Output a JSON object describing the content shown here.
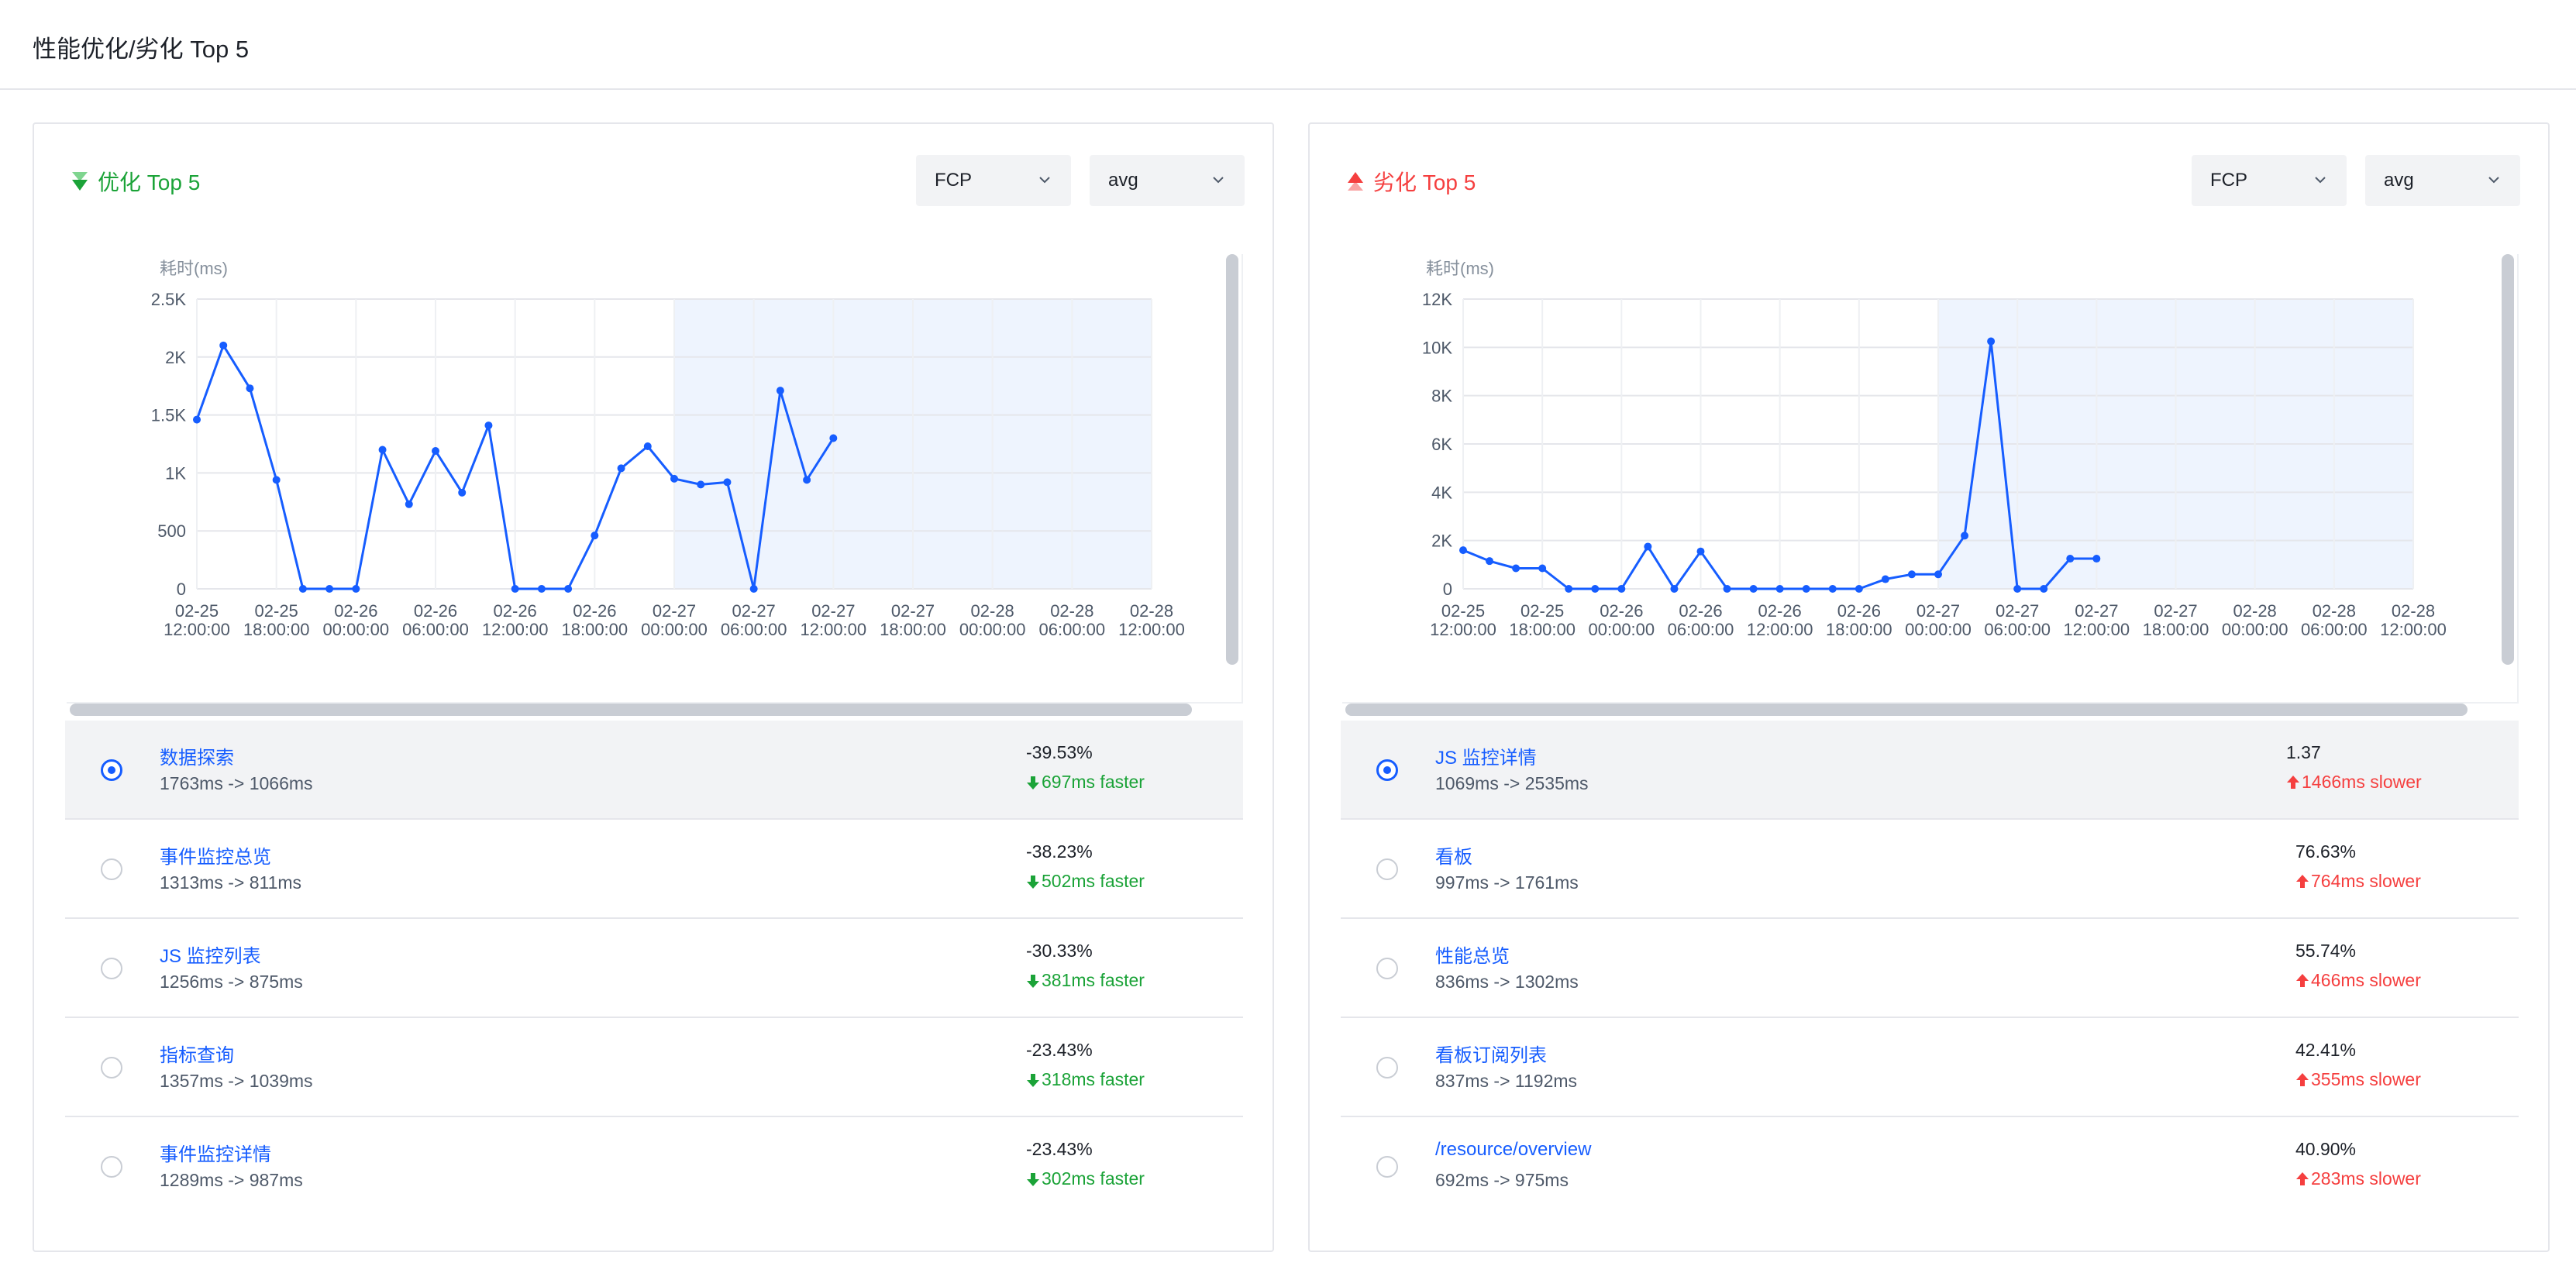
{
  "page": {
    "title": "性能优化/劣化 Top 5"
  },
  "colors": {
    "accent": "#165dff",
    "improve": "#1ba338",
    "degrade": "#f53f3f",
    "band": "#eef4fe"
  },
  "panels": [
    {
      "id": "improve",
      "title": "优化 Top 5",
      "icon": "double-arrow-down-icon",
      "metric_select": "FCP",
      "stat_select": "avg",
      "items": [
        {
          "name": "数据探索",
          "range": "1763ms -> 1066ms",
          "pct": "-39.53%",
          "delta": "697ms faster",
          "selected": true
        },
        {
          "name": "事件监控总览",
          "range": "1313ms -> 811ms",
          "pct": "-38.23%",
          "delta": "502ms faster",
          "selected": false
        },
        {
          "name": "JS 监控列表",
          "range": "1256ms -> 875ms",
          "pct": "-30.33%",
          "delta": "381ms faster",
          "selected": false
        },
        {
          "name": "指标查询",
          "range": "1357ms -> 1039ms",
          "pct": "-23.43%",
          "delta": "318ms faster",
          "selected": false
        },
        {
          "name": "事件监控详情",
          "range": "1289ms -> 987ms",
          "pct": "-23.43%",
          "delta": "302ms faster",
          "selected": false
        }
      ]
    },
    {
      "id": "degrade",
      "title": "劣化 Top 5",
      "icon": "double-arrow-up-icon",
      "metric_select": "FCP",
      "stat_select": "avg",
      "items": [
        {
          "name": "JS 监控详情",
          "range": "1069ms -> 2535ms",
          "pct": "1.37",
          "delta": "1466ms slower",
          "selected": true
        },
        {
          "name": "看板",
          "range": "997ms -> 1761ms",
          "pct": "76.63%",
          "delta": "764ms slower",
          "selected": false
        },
        {
          "name": "性能总览",
          "range": "836ms -> 1302ms",
          "pct": "55.74%",
          "delta": "466ms slower",
          "selected": false
        },
        {
          "name": "看板订阅列表",
          "range": "837ms -> 1192ms",
          "pct": "42.41%",
          "delta": "355ms slower",
          "selected": false
        },
        {
          "name": "/resource/overview",
          "range": "692ms -> 975ms",
          "pct": "40.90%",
          "delta": "283ms slower",
          "selected": false
        }
      ]
    }
  ],
  "chart_data": [
    {
      "type": "line",
      "ylabel": "耗时(ms)",
      "ylim": [
        0,
        2500
      ],
      "yticks": [
        0,
        500,
        1000,
        1500,
        2000,
        2500
      ],
      "ytick_labels": [
        "0",
        "500",
        "1K",
        "1.5K",
        "2K",
        "2.5K"
      ],
      "xtick_labels": [
        [
          "02-25",
          "12:00:00"
        ],
        [
          "02-25",
          "18:00:00"
        ],
        [
          "02-26",
          "00:00:00"
        ],
        [
          "02-26",
          "06:00:00"
        ],
        [
          "02-26",
          "12:00:00"
        ],
        [
          "02-26",
          "18:00:00"
        ],
        [
          "02-27",
          "00:00:00"
        ],
        [
          "02-27",
          "06:00:00"
        ],
        [
          "02-27",
          "12:00:00"
        ],
        [
          "02-27",
          "18:00:00"
        ],
        [
          "02-28",
          "00:00:00"
        ],
        [
          "02-28",
          "06:00:00"
        ],
        [
          "02-28",
          "12:00:00"
        ]
      ],
      "shaded_range": [
        "02-27 00:00:00",
        "02-28 12:00:00"
      ],
      "points_per_interval": 3,
      "values": [
        1460,
        2100,
        1730,
        940,
        0,
        0,
        0,
        1200,
        730,
        1190,
        830,
        1410,
        0,
        0,
        0,
        460,
        1040,
        1230,
        950,
        900,
        920,
        0,
        1710,
        940,
        1300
      ]
    },
    {
      "type": "line",
      "ylabel": "耗时(ms)",
      "ylim": [
        0,
        12000
      ],
      "yticks": [
        0,
        2000,
        4000,
        6000,
        8000,
        10000,
        12000
      ],
      "ytick_labels": [
        "0",
        "2K",
        "4K",
        "6K",
        "8K",
        "10K",
        "12K"
      ],
      "xtick_labels": [
        [
          "02-25",
          "12:00:00"
        ],
        [
          "02-25",
          "18:00:00"
        ],
        [
          "02-26",
          "00:00:00"
        ],
        [
          "02-26",
          "06:00:00"
        ],
        [
          "02-26",
          "12:00:00"
        ],
        [
          "02-26",
          "18:00:00"
        ],
        [
          "02-27",
          "00:00:00"
        ],
        [
          "02-27",
          "06:00:00"
        ],
        [
          "02-27",
          "12:00:00"
        ],
        [
          "02-27",
          "18:00:00"
        ],
        [
          "02-28",
          "00:00:00"
        ],
        [
          "02-28",
          "06:00:00"
        ],
        [
          "02-28",
          "12:00:00"
        ]
      ],
      "shaded_range": [
        "02-27 00:00:00",
        "02-28 12:00:00"
      ],
      "points_per_interval": 3,
      "values": [
        1600,
        1150,
        850,
        850,
        0,
        0,
        0,
        1750,
        0,
        1550,
        0,
        0,
        0,
        0,
        0,
        0,
        400,
        600,
        600,
        2200,
        10250,
        0,
        0,
        1250,
        1250
      ]
    }
  ]
}
